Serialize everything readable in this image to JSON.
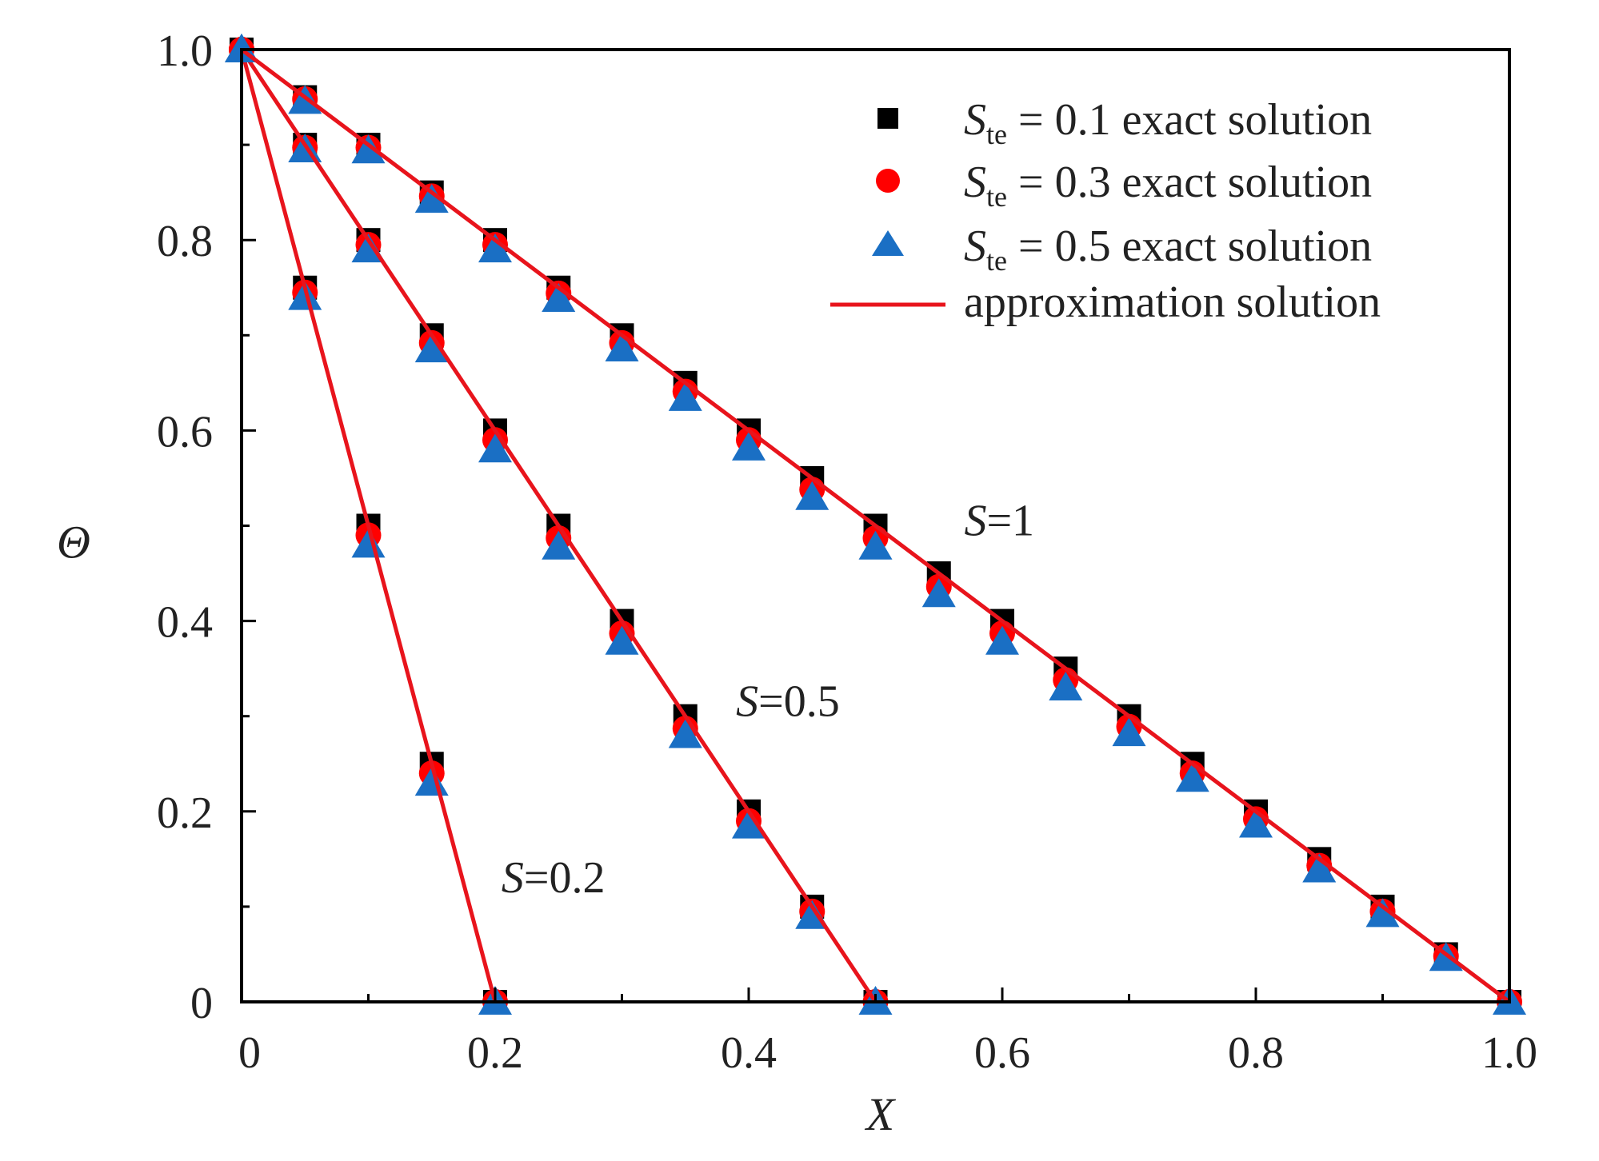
{
  "chart_data": {
    "type": "line",
    "xlabel": "X",
    "ylabel": "Θ",
    "xlim": [
      0,
      1.0
    ],
    "ylim": [
      0,
      1.0
    ],
    "x_ticks": [
      {
        "value": 0,
        "label": "0"
      },
      {
        "value": 0.2,
        "label": "0.2"
      },
      {
        "value": 0.4,
        "label": "0.4"
      },
      {
        "value": 0.6,
        "label": "0.6"
      },
      {
        "value": 0.8,
        "label": "0.8"
      },
      {
        "value": 1.0,
        "label": "1.0"
      }
    ],
    "y_ticks": [
      {
        "value": 0,
        "label": "0"
      },
      {
        "value": 0.2,
        "label": "0.2"
      },
      {
        "value": 0.4,
        "label": "0.4"
      },
      {
        "value": 0.6,
        "label": "0.6"
      },
      {
        "value": 0.8,
        "label": "0.8"
      },
      {
        "value": 1.0,
        "label": "1.0"
      }
    ],
    "grid": false,
    "legend_position": "top-right",
    "legend": [
      {
        "symbol": "square",
        "color": "#000000",
        "sym": "S",
        "sub": "te",
        "text": " = 0.1 exact solution"
      },
      {
        "symbol": "circle",
        "color": "#ff0000",
        "sym": "S",
        "sub": "te",
        "text": " = 0.3 exact solution"
      },
      {
        "symbol": "triangle",
        "color": "#1a6fc4",
        "sym": "S",
        "sub": "te",
        "text": " = 0.5 exact solution"
      },
      {
        "symbol": "line",
        "color": "#e8141c",
        "text": "approximation solution"
      }
    ],
    "curves": [
      {
        "label_sym": "S",
        "label_value": "=0.2",
        "label_at": [
          0.205,
          0.115
        ],
        "line": {
          "x": [
            0,
            0.2
          ],
          "y": [
            1.0,
            0.0
          ]
        },
        "square": {
          "x": [
            0,
            0.05,
            0.1,
            0.15,
            0.2
          ],
          "y": [
            1.0,
            0.75,
            0.5,
            0.25,
            0.0
          ]
        },
        "circle": {
          "x": [
            0,
            0.05,
            0.1,
            0.15,
            0.2
          ],
          "y": [
            1.0,
            0.745,
            0.49,
            0.24,
            0.0
          ]
        },
        "triangle": {
          "x": [
            0,
            0.05,
            0.1,
            0.15,
            0.2
          ],
          "y": [
            1.0,
            0.74,
            0.48,
            0.23,
            0.0
          ]
        }
      },
      {
        "label_sym": "S",
        "label_value": "=0.5",
        "label_at": [
          0.39,
          0.3
        ],
        "line": {
          "x": [
            0,
            0.5
          ],
          "y": [
            1.0,
            0.0
          ]
        },
        "square": {
          "x": [
            0,
            0.05,
            0.1,
            0.15,
            0.2,
            0.25,
            0.3,
            0.35,
            0.4,
            0.45,
            0.5
          ],
          "y": [
            1.0,
            0.9,
            0.8,
            0.7,
            0.6,
            0.5,
            0.4,
            0.3,
            0.2,
            0.1,
            0.0
          ]
        },
        "circle": {
          "x": [
            0,
            0.05,
            0.1,
            0.15,
            0.2,
            0.25,
            0.3,
            0.35,
            0.4,
            0.45,
            0.5
          ],
          "y": [
            1.0,
            0.897,
            0.795,
            0.692,
            0.59,
            0.487,
            0.387,
            0.287,
            0.19,
            0.095,
            0.0
          ]
        },
        "triangle": {
          "x": [
            0,
            0.05,
            0.1,
            0.15,
            0.2,
            0.25,
            0.3,
            0.35,
            0.4,
            0.45,
            0.5
          ],
          "y": [
            1.0,
            0.895,
            0.79,
            0.685,
            0.58,
            0.478,
            0.378,
            0.28,
            0.185,
            0.09,
            0.0
          ]
        }
      },
      {
        "label_sym": "S",
        "label_value": "=1",
        "label_at": [
          0.57,
          0.49
        ],
        "line": {
          "x": [
            0,
            1.0
          ],
          "y": [
            1.0,
            0.0
          ]
        },
        "square": {
          "x": [
            0,
            0.05,
            0.1,
            0.15,
            0.2,
            0.25,
            0.3,
            0.35,
            0.4,
            0.45,
            0.5,
            0.55,
            0.6,
            0.65,
            0.7,
            0.75,
            0.8,
            0.85,
            0.9,
            0.95,
            1.0
          ],
          "y": [
            1.0,
            0.95,
            0.9,
            0.85,
            0.8,
            0.75,
            0.7,
            0.65,
            0.6,
            0.55,
            0.5,
            0.45,
            0.4,
            0.35,
            0.3,
            0.25,
            0.2,
            0.15,
            0.1,
            0.05,
            0.0
          ]
        },
        "circle": {
          "x": [
            0,
            0.05,
            0.1,
            0.15,
            0.2,
            0.25,
            0.3,
            0.35,
            0.4,
            0.45,
            0.5,
            0.55,
            0.6,
            0.65,
            0.7,
            0.75,
            0.8,
            0.85,
            0.9,
            0.95,
            1.0
          ],
          "y": [
            1.0,
            0.948,
            0.897,
            0.846,
            0.795,
            0.744,
            0.692,
            0.641,
            0.59,
            0.538,
            0.487,
            0.436,
            0.387,
            0.338,
            0.289,
            0.24,
            0.192,
            0.143,
            0.095,
            0.048,
            0.0
          ]
        },
        "triangle": {
          "x": [
            0,
            0.05,
            0.1,
            0.15,
            0.2,
            0.25,
            0.3,
            0.35,
            0.4,
            0.45,
            0.5,
            0.55,
            0.6,
            0.65,
            0.7,
            0.75,
            0.8,
            0.85,
            0.9,
            0.95,
            1.0
          ],
          "y": [
            1.0,
            0.946,
            0.894,
            0.842,
            0.79,
            0.738,
            0.686,
            0.634,
            0.582,
            0.53,
            0.478,
            0.428,
            0.378,
            0.33,
            0.282,
            0.234,
            0.186,
            0.139,
            0.092,
            0.046,
            0.0
          ]
        }
      }
    ]
  }
}
